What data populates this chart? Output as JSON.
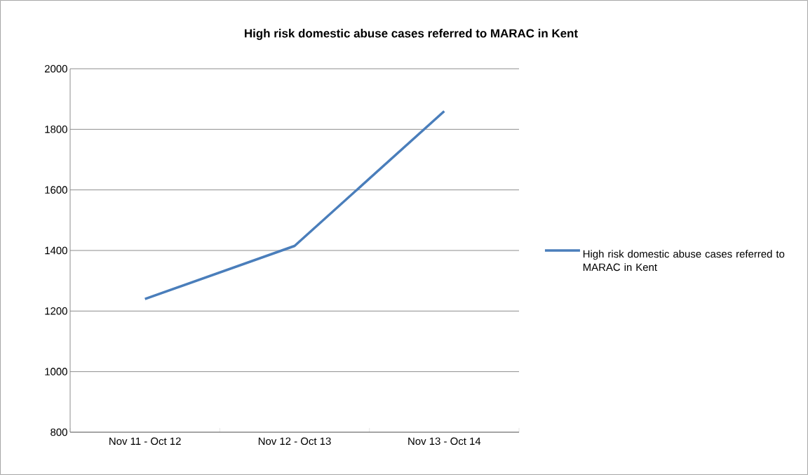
{
  "chart_data": {
    "type": "line",
    "title": "High risk domestic abuse cases referred to MARAC in Kent",
    "categories": [
      "Nov 11 - Oct 12",
      "Nov 12 - Oct 13",
      "Nov 13 - Oct 14"
    ],
    "series": [
      {
        "name": "High risk domestic abuse cases referred to MARAC in Kent",
        "color": "#4a7ebb",
        "values": [
          1240,
          1415,
          1860
        ]
      }
    ],
    "ylim": [
      800,
      2000
    ],
    "yticks": [
      800,
      1000,
      1200,
      1400,
      1600,
      1800,
      2000
    ],
    "grid": "y",
    "legend": "right",
    "marker": "none",
    "line_style": "solid"
  }
}
